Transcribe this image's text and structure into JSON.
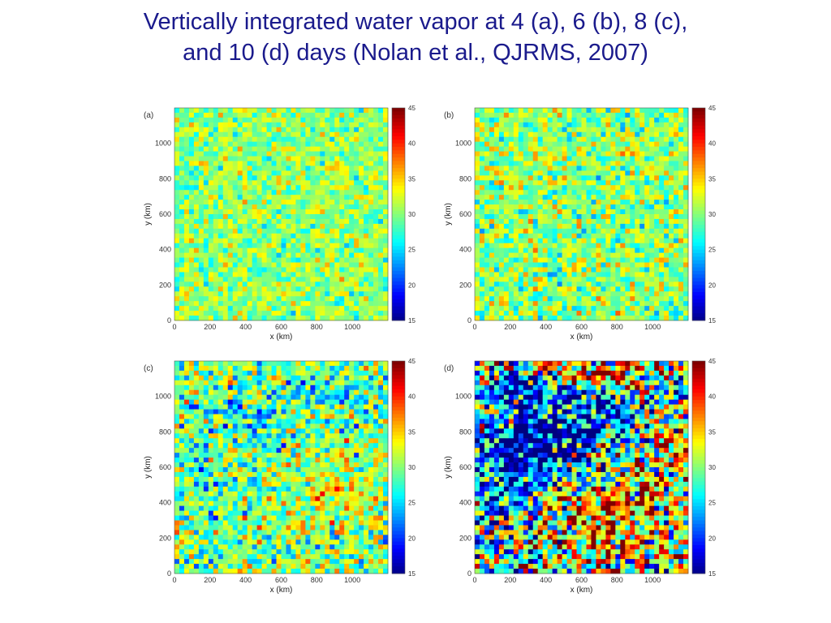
{
  "slide": {
    "title_line1": "Vertically integrated water vapor at 4 (a), 6 (b), 8 (c),",
    "title_line2": "and 10 (d) days   (Nolan et al., QJRMS, 2007)"
  },
  "chart_data": [
    {
      "type": "heatmap",
      "panel_label": "(a)",
      "xlabel": "x (km)",
      "ylabel": "y (km)",
      "xlim": [
        0,
        1200
      ],
      "ylim": [
        0,
        1200
      ],
      "x_ticks": [
        0,
        200,
        400,
        600,
        800,
        1000
      ],
      "y_ticks": [
        0,
        200,
        400,
        600,
        800,
        1000
      ],
      "colorbar": {
        "min": 15,
        "max": 45,
        "ticks": [
          15,
          20,
          25,
          30,
          35,
          40,
          45
        ],
        "colormap": "jet"
      },
      "field_description_values": {
        "mean": 30.5,
        "spread": 2.5,
        "pattern": "uniform fine-scale speckle"
      }
    },
    {
      "type": "heatmap",
      "panel_label": "(b)",
      "xlabel": "x (km)",
      "ylabel": "y (km)",
      "xlim": [
        0,
        1200
      ],
      "ylim": [
        0,
        1200
      ],
      "x_ticks": [
        0,
        200,
        400,
        600,
        800,
        1000
      ],
      "y_ticks": [
        0,
        200,
        400,
        600,
        800,
        1000
      ],
      "colorbar": {
        "min": 15,
        "max": 45,
        "ticks": [
          15,
          20,
          25,
          30,
          35,
          40,
          45
        ],
        "colormap": "jet"
      },
      "field_description_values": {
        "mean": 30.5,
        "spread": 3,
        "pattern": "speckle with slightly larger patches"
      }
    },
    {
      "type": "heatmap",
      "panel_label": "(c)",
      "xlabel": "x (km)",
      "ylabel": "y (km)",
      "xlim": [
        0,
        1200
      ],
      "ylim": [
        0,
        1200
      ],
      "x_ticks": [
        0,
        200,
        400,
        600,
        800,
        1000
      ],
      "y_ticks": [
        0,
        200,
        400,
        600,
        800,
        1000
      ],
      "colorbar": {
        "min": 15,
        "max": 45,
        "ticks": [
          15,
          20,
          25,
          30,
          35,
          40,
          45
        ],
        "colormap": "jet"
      },
      "field_description_values": {
        "mean": 30,
        "spread": 4,
        "pattern": "dry patches upper-left, moist lower-right"
      }
    },
    {
      "type": "heatmap",
      "panel_label": "(d)",
      "xlabel": "x (km)",
      "ylabel": "y (km)",
      "xlim": [
        0,
        1200
      ],
      "ylim": [
        0,
        1200
      ],
      "x_ticks": [
        0,
        200,
        400,
        600,
        800,
        1000
      ],
      "y_ticks": [
        0,
        200,
        400,
        600,
        800,
        1000
      ],
      "colorbar": {
        "min": 15,
        "max": 45,
        "ticks": [
          15,
          20,
          25,
          30,
          35,
          40,
          45
        ],
        "colormap": "jet"
      },
      "field_description_values": {
        "mean": 28,
        "spread": 8,
        "pattern": "very dry band through center-left, very moist lower-right and top"
      }
    }
  ]
}
